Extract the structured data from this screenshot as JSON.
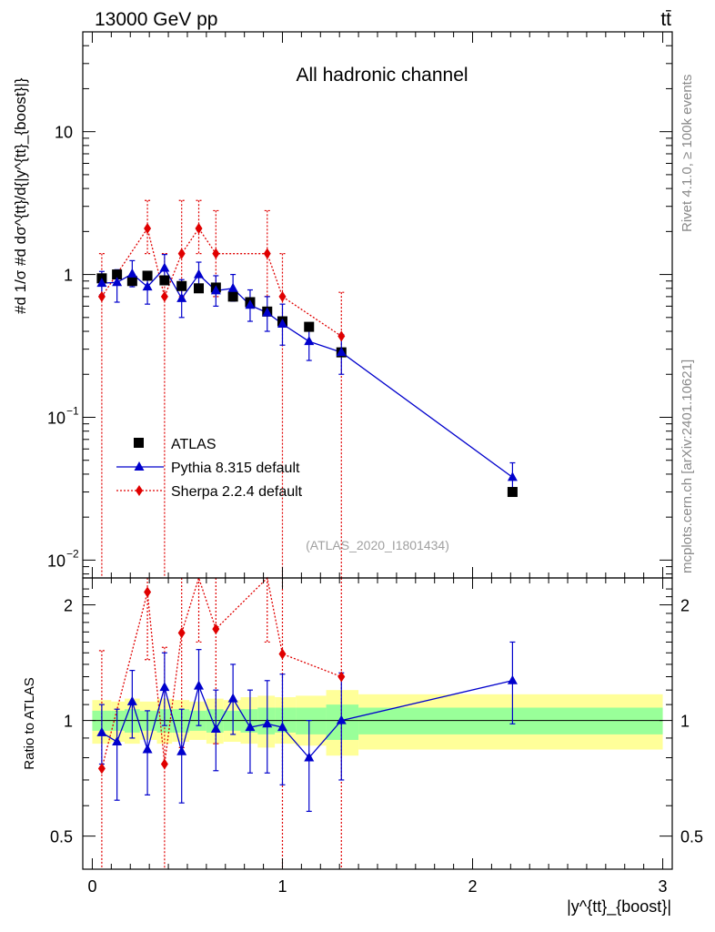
{
  "header": {
    "left": "13000 GeV pp",
    "right": "tt̄"
  },
  "side_labels": {
    "top": "Rivet 4.1.0, ≥ 100k events",
    "bottom": "mcplots.cern.ch [arXiv:2401.10621]"
  },
  "chart_data": {
    "type": "scatter",
    "title": "All hadronic channel",
    "watermark": "(ATLAS_2020_I1801434)",
    "ylabel_main": "#d 1/σ #d dσ^{tt}/d{|y^{tt}_{boost}|}",
    "ylabel_ratio": "Ratio to ATLAS",
    "xlabel": "|y^{tt}_{boost}|",
    "xlim": [
      -0.05,
      3.05
    ],
    "ylim_main": [
      0.0075,
      50
    ],
    "ylim_ratio": [
      0.41,
      2.35
    ],
    "x_ticks": [
      {
        "v": 0,
        "label": "0"
      },
      {
        "v": 1,
        "label": "1"
      },
      {
        "v": 2,
        "label": "2"
      },
      {
        "v": 3,
        "label": "3"
      }
    ],
    "y_ticks_main": [
      {
        "v": 10,
        "label": "10",
        "kind": "plain"
      },
      {
        "v": 1,
        "label": "1",
        "kind": "plain"
      },
      {
        "v": 0.1,
        "label": "10",
        "exp": "−1",
        "kind": "pow"
      },
      {
        "v": 0.01,
        "label": "10",
        "exp": "−2",
        "kind": "pow"
      }
    ],
    "y_ticks_ratio": [
      {
        "v": 2,
        "label": "2"
      },
      {
        "v": 1,
        "label": "1"
      },
      {
        "v": 0.5,
        "label": "0.5"
      }
    ],
    "legend": [
      {
        "name": "ATLAS",
        "marker": "square",
        "color": "#000000"
      },
      {
        "name": "Pythia 8.315 default",
        "marker": "triangle",
        "color": "#0000cc"
      },
      {
        "name": "Sherpa 2.2.4 default",
        "marker": "diamond",
        "color": "#e00000"
      }
    ],
    "atlas": [
      {
        "x": 0.05,
        "y": 0.94
      },
      {
        "x": 0.13,
        "y": 1.0
      },
      {
        "x": 0.21,
        "y": 0.9
      },
      {
        "x": 0.29,
        "y": 0.98
      },
      {
        "x": 0.38,
        "y": 0.91
      },
      {
        "x": 0.47,
        "y": 0.83
      },
      {
        "x": 0.56,
        "y": 0.8
      },
      {
        "x": 0.65,
        "y": 0.81
      },
      {
        "x": 0.74,
        "y": 0.7
      },
      {
        "x": 0.83,
        "y": 0.64
      },
      {
        "x": 0.92,
        "y": 0.55
      },
      {
        "x": 1.0,
        "y": 0.47
      },
      {
        "x": 1.14,
        "y": 0.43
      },
      {
        "x": 1.31,
        "y": 0.285
      },
      {
        "x": 2.21,
        "y": 0.03
      }
    ],
    "pythia": [
      {
        "x": 0.05,
        "y": 0.87,
        "lo": 0.72,
        "hi": 1.05
      },
      {
        "x": 0.13,
        "y": 0.88,
        "lo": 0.64,
        "hi": 1.08
      },
      {
        "x": 0.21,
        "y": 1.01,
        "lo": 0.82,
        "hi": 1.25
      },
      {
        "x": 0.29,
        "y": 0.82,
        "lo": 0.62,
        "hi": 1.05
      },
      {
        "x": 0.38,
        "y": 1.11,
        "lo": 0.88,
        "hi": 1.38
      },
      {
        "x": 0.47,
        "y": 0.68,
        "lo": 0.5,
        "hi": 0.92
      },
      {
        "x": 0.56,
        "y": 1.0,
        "lo": 0.78,
        "hi": 1.22
      },
      {
        "x": 0.65,
        "y": 0.77,
        "lo": 0.6,
        "hi": 0.98
      },
      {
        "x": 0.74,
        "y": 0.8,
        "lo": 0.65,
        "hi": 1.0
      },
      {
        "x": 0.83,
        "y": 0.61,
        "lo": 0.47,
        "hi": 0.78
      },
      {
        "x": 0.92,
        "y": 0.54,
        "lo": 0.4,
        "hi": 0.7
      },
      {
        "x": 1.0,
        "y": 0.45,
        "lo": 0.32,
        "hi": 0.62
      },
      {
        "x": 1.14,
        "y": 0.34,
        "lo": 0.25,
        "hi": 0.44
      },
      {
        "x": 1.31,
        "y": 0.285,
        "lo": 0.2,
        "hi": 0.38
      },
      {
        "x": 2.21,
        "y": 0.038,
        "lo": 0.029,
        "hi": 0.048
      }
    ],
    "sherpa": [
      {
        "x": 0.05,
        "y": 0.7,
        "lo": 0.0075,
        "hi": 1.4
      },
      {
        "x": 0.29,
        "y": 2.1,
        "lo": 1.4,
        "hi": 3.3
      },
      {
        "x": 0.38,
        "y": 0.7,
        "lo": 0.0075,
        "hi": 1.4
      },
      {
        "x": 0.47,
        "y": 1.4,
        "lo": 0.7,
        "hi": 3.3
      },
      {
        "x": 0.56,
        "y": 2.1,
        "lo": 1.4,
        "hi": 3.3
      },
      {
        "x": 0.65,
        "y": 1.4,
        "lo": 0.7,
        "hi": 2.8
      },
      {
        "x": 0.92,
        "y": 1.4,
        "lo": 0.7,
        "hi": 2.8
      },
      {
        "x": 1.0,
        "y": 0.7,
        "lo": 0.0075,
        "hi": 1.4
      },
      {
        "x": 1.31,
        "y": 0.37,
        "lo": 0.0075,
        "hi": 0.75
      }
    ],
    "pythia_ratio": [
      {
        "x": 0.05,
        "y": 0.93,
        "lo": 0.77,
        "hi": 1.1
      },
      {
        "x": 0.13,
        "y": 0.88,
        "lo": 0.62,
        "hi": 1.07
      },
      {
        "x": 0.21,
        "y": 1.12,
        "lo": 0.9,
        "hi": 1.35
      },
      {
        "x": 0.29,
        "y": 0.84,
        "lo": 0.64,
        "hi": 1.06
      },
      {
        "x": 0.38,
        "y": 1.22,
        "lo": 0.97,
        "hi": 1.5
      },
      {
        "x": 0.47,
        "y": 0.83,
        "lo": 0.61,
        "hi": 1.07
      },
      {
        "x": 0.56,
        "y": 1.23,
        "lo": 0.97,
        "hi": 1.53
      },
      {
        "x": 0.65,
        "y": 0.95,
        "lo": 0.74,
        "hi": 1.2
      },
      {
        "x": 0.74,
        "y": 1.14,
        "lo": 0.92,
        "hi": 1.4
      },
      {
        "x": 0.83,
        "y": 0.96,
        "lo": 0.73,
        "hi": 1.2
      },
      {
        "x": 0.92,
        "y": 0.98,
        "lo": 0.73,
        "hi": 1.27
      },
      {
        "x": 1.0,
        "y": 0.96,
        "lo": 0.68,
        "hi": 1.32
      },
      {
        "x": 1.14,
        "y": 0.8,
        "lo": 0.58,
        "hi": 1.0
      },
      {
        "x": 1.31,
        "y": 1.0,
        "lo": 0.7,
        "hi": 1.33
      },
      {
        "x": 2.21,
        "y": 1.27,
        "lo": 0.98,
        "hi": 1.6
      }
    ],
    "sherpa_ratio": [
      {
        "x": 0.05,
        "y": 0.75,
        "lo": 0.41,
        "hi": 1.52
      },
      {
        "x": 0.29,
        "y": 2.16,
        "lo": 1.44,
        "hi": 2.35
      },
      {
        "x": 0.38,
        "y": 0.77,
        "lo": 0.41,
        "hi": 1.55
      },
      {
        "x": 0.47,
        "y": 1.69,
        "lo": 0.85,
        "hi": 2.35
      },
      {
        "x": 0.56,
        "y": 2.35,
        "lo": 1.6,
        "hi": 2.35
      },
      {
        "x": 0.65,
        "y": 1.73,
        "lo": 0.87,
        "hi": 2.35
      },
      {
        "x": 0.92,
        "y": 2.35,
        "lo": 1.6,
        "hi": 2.35
      },
      {
        "x": 1.0,
        "y": 1.49,
        "lo": 0.41,
        "hi": 2.35
      },
      {
        "x": 1.31,
        "y": 1.3,
        "lo": 0.41,
        "hi": 2.35
      }
    ],
    "bands": [
      {
        "x0": 0.0,
        "x1": 0.1,
        "in_lo": 0.94,
        "in_hi": 1.06,
        "out_lo": 0.87,
        "out_hi": 1.13
      },
      {
        "x0": 0.1,
        "x1": 0.17,
        "in_lo": 0.94,
        "in_hi": 1.06,
        "out_lo": 0.88,
        "out_hi": 1.12
      },
      {
        "x0": 0.17,
        "x1": 0.25,
        "in_lo": 0.93,
        "in_hi": 1.07,
        "out_lo": 0.87,
        "out_hi": 1.14
      },
      {
        "x0": 0.25,
        "x1": 0.34,
        "in_lo": 0.94,
        "in_hi": 1.06,
        "out_lo": 0.89,
        "out_hi": 1.12
      },
      {
        "x0": 0.34,
        "x1": 0.42,
        "in_lo": 0.93,
        "in_hi": 1.07,
        "out_lo": 0.87,
        "out_hi": 1.14
      },
      {
        "x0": 0.42,
        "x1": 0.51,
        "in_lo": 0.93,
        "in_hi": 1.07,
        "out_lo": 0.88,
        "out_hi": 1.13
      },
      {
        "x0": 0.51,
        "x1": 0.6,
        "in_lo": 0.94,
        "in_hi": 1.06,
        "out_lo": 0.89,
        "out_hi": 1.12
      },
      {
        "x0": 0.6,
        "x1": 0.69,
        "in_lo": 0.93,
        "in_hi": 1.07,
        "out_lo": 0.87,
        "out_hi": 1.14
      },
      {
        "x0": 0.69,
        "x1": 0.78,
        "in_lo": 0.94,
        "in_hi": 1.06,
        "out_lo": 0.88,
        "out_hi": 1.13
      },
      {
        "x0": 0.78,
        "x1": 0.87,
        "in_lo": 0.93,
        "in_hi": 1.07,
        "out_lo": 0.87,
        "out_hi": 1.15
      },
      {
        "x0": 0.87,
        "x1": 0.96,
        "in_lo": 0.92,
        "in_hi": 1.08,
        "out_lo": 0.85,
        "out_hi": 1.16
      },
      {
        "x0": 0.96,
        "x1": 1.07,
        "in_lo": 0.93,
        "in_hi": 1.08,
        "out_lo": 0.87,
        "out_hi": 1.15
      },
      {
        "x0": 1.07,
        "x1": 1.23,
        "in_lo": 0.92,
        "in_hi": 1.08,
        "out_lo": 0.86,
        "out_hi": 1.16
      },
      {
        "x0": 1.23,
        "x1": 1.4,
        "in_lo": 0.89,
        "in_hi": 1.1,
        "out_lo": 0.81,
        "out_hi": 1.2
      },
      {
        "x0": 1.4,
        "x1": 3.0,
        "in_lo": 0.92,
        "in_hi": 1.08,
        "out_lo": 0.84,
        "out_hi": 1.17
      }
    ]
  },
  "colors": {
    "atlas": "#000000",
    "pythia": "#0000cc",
    "sherpa": "#e00000",
    "band_inner": "#99ff99",
    "band_outer": "#ffff99",
    "side_text": "#8a8a8a"
  }
}
